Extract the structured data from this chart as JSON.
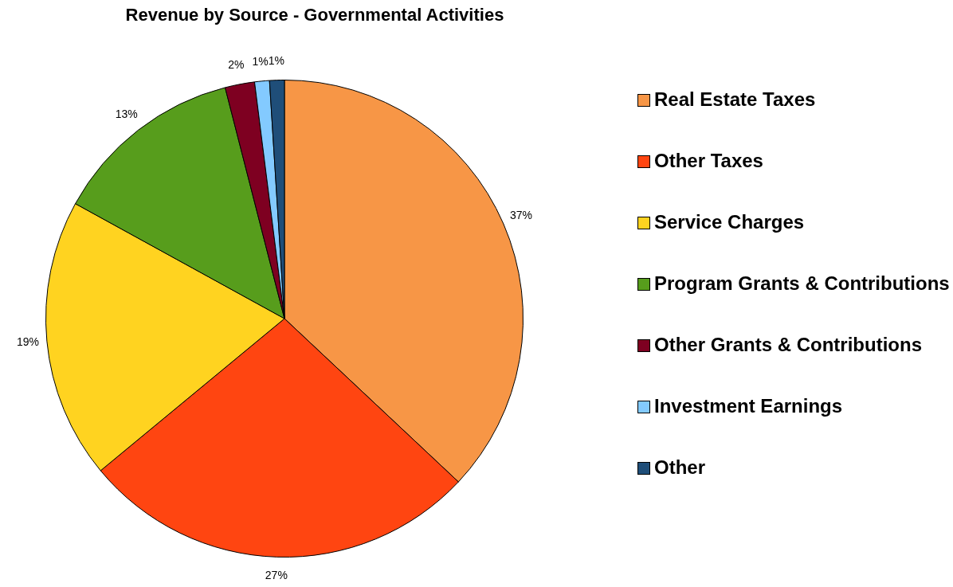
{
  "chart_data": {
    "type": "pie",
    "title": "Revenue by Source - Governmental Activities",
    "categories": [
      "Real Estate Taxes",
      "Other Taxes",
      "Service Charges",
      "Program Grants & Contributions",
      "Other Grants & Contributions",
      "Investment Earnings",
      "Other"
    ],
    "values": [
      37,
      27,
      19,
      13,
      2,
      1,
      1
    ],
    "colors": [
      "#f79646",
      "#ff4511",
      "#ffd320",
      "#579d1c",
      "#7e0021",
      "#83caff",
      "#1f4e79"
    ],
    "value_labels": [
      "37%",
      "27%",
      "19%",
      "13%",
      "2%",
      "1%",
      "1%"
    ],
    "legend": "right"
  }
}
